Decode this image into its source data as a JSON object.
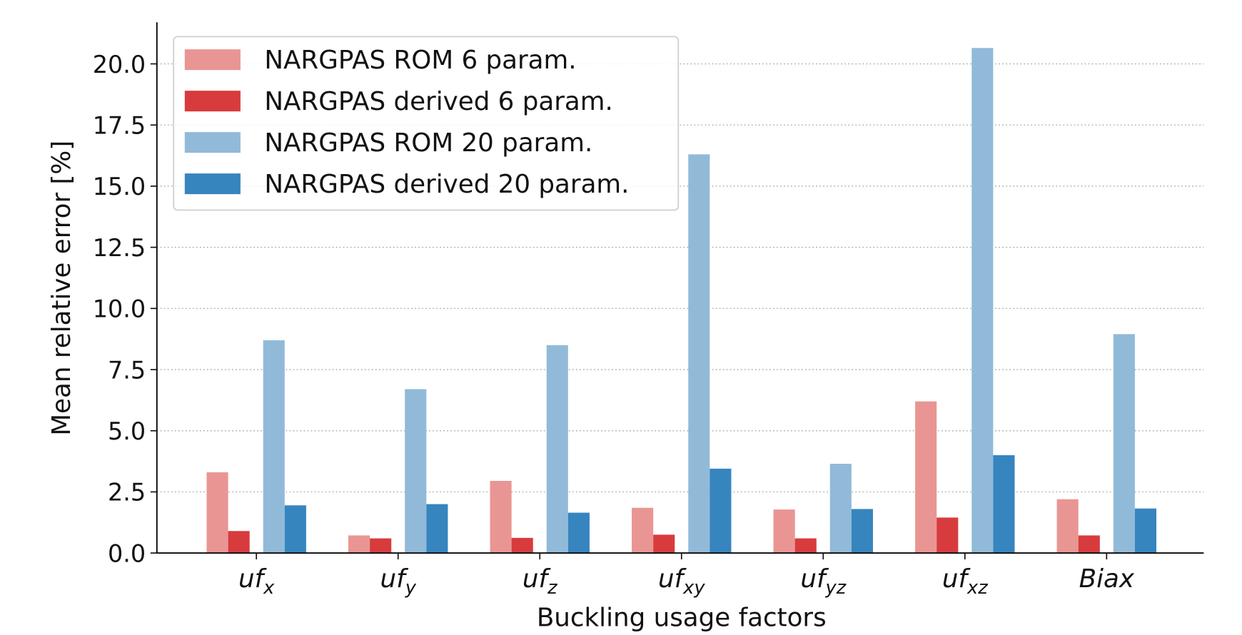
{
  "chart_data": {
    "type": "bar",
    "xlabel": "Buckling usage factors",
    "ylabel": "Mean relative error [%]",
    "categories": [
      {
        "text": "uf",
        "sub": "x"
      },
      {
        "text": "uf",
        "sub": "y"
      },
      {
        "text": "uf",
        "sub": "z"
      },
      {
        "text": "uf",
        "sub": "xy"
      },
      {
        "text": "uf",
        "sub": "yz"
      },
      {
        "text": "uf",
        "sub": "xz"
      },
      {
        "text": "Biax"
      }
    ],
    "series": [
      {
        "name": "NARGPAS ROM 6 param.",
        "color": "#e99593",
        "values": [
          3.3,
          0.72,
          2.95,
          1.85,
          1.78,
          6.2,
          2.2
        ]
      },
      {
        "name": "NARGPAS derived 6 param.",
        "color": "#d83b3d",
        "values": [
          0.9,
          0.6,
          0.62,
          0.75,
          0.6,
          1.45,
          0.72
        ]
      },
      {
        "name": "NARGPAS ROM 20 param.",
        "color": "#91bad9",
        "values": [
          8.7,
          6.7,
          8.5,
          16.3,
          3.65,
          20.65,
          8.95
        ]
      },
      {
        "name": "NARGPAS derived 20 param.",
        "color": "#3685be",
        "values": [
          1.95,
          2.0,
          1.65,
          3.45,
          1.8,
          4.0,
          1.82
        ]
      }
    ],
    "ylim": [
      0,
      21.7
    ],
    "yticks": [
      {
        "value": 0,
        "label": "0.0"
      },
      2.5,
      {
        "value": 5,
        "label": "5.0"
      },
      7.5,
      {
        "value": 10,
        "label": "10.0"
      },
      12.5,
      {
        "value": 15,
        "label": "15.0"
      },
      17.5,
      {
        "value": 20,
        "label": "20.0"
      }
    ],
    "grid": true,
    "legend": "upper left"
  }
}
